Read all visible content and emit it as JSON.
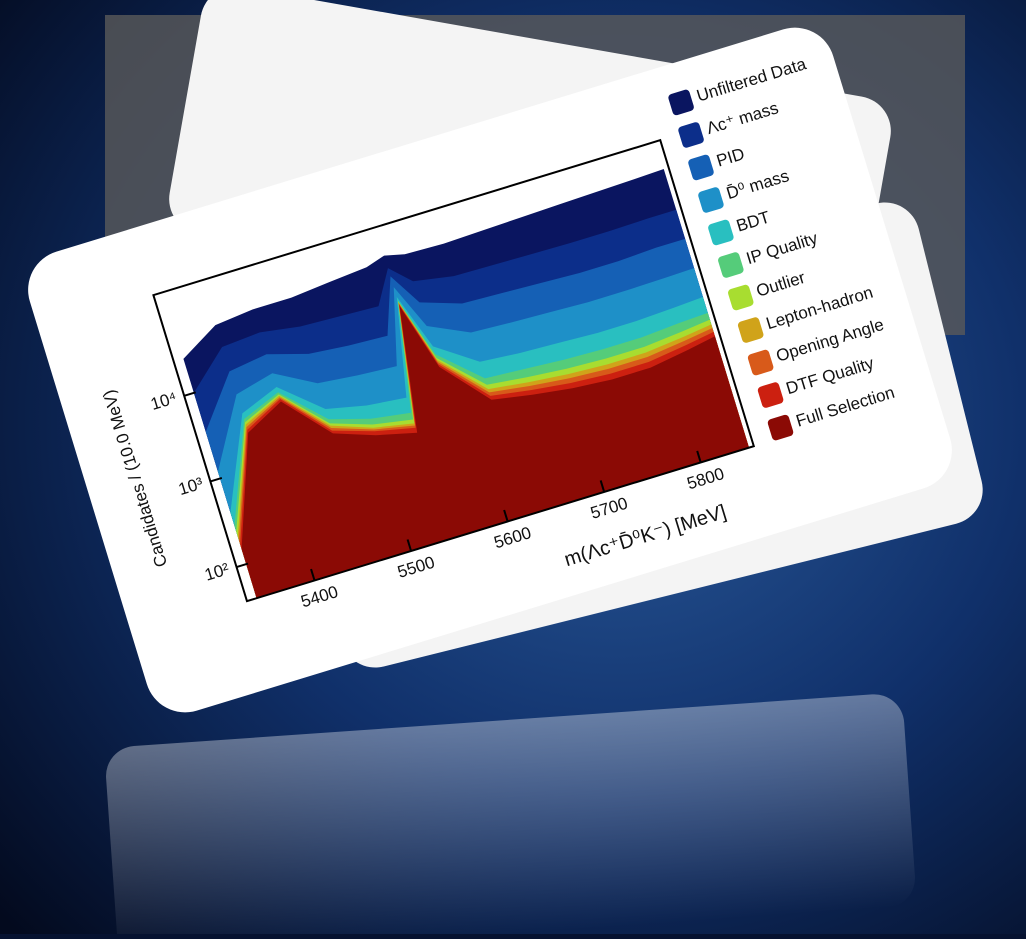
{
  "chart_data": {
    "type": "area",
    "ylabel": "Candidates / (10.0 MeV)",
    "xlabel": "m(Λc⁺D̄⁰K⁻) [MeV]",
    "log_y": true,
    "x": [
      5340,
      5380,
      5420,
      5460,
      5500,
      5540,
      5560,
      5580,
      5620,
      5660,
      5700,
      5740,
      5780,
      5820,
      5850
    ],
    "xlim": [
      5330,
      5855
    ],
    "xticks": [
      5400,
      5500,
      5600,
      5700,
      5800
    ],
    "ylim": [
      40,
      150000
    ],
    "yticks": [
      {
        "value": 100,
        "label": "10²"
      },
      {
        "value": 1000,
        "label": "10³"
      },
      {
        "value": 10000,
        "label": "10⁴"
      }
    ],
    "series": [
      {
        "name": "Unfiltered Data",
        "color": "#0a1560",
        "values": [
          25000,
          45000,
          50000,
          50000,
          55000,
          60000,
          70000,
          62000,
          60000,
          62000,
          64000,
          66000,
          68000,
          70000,
          72000
        ]
      },
      {
        "name": "Λc⁺ mass",
        "color": "#0c2e8a",
        "values": [
          10000,
          25000,
          27000,
          23000,
          22000,
          21000,
          50000,
          30000,
          25000,
          24500,
          24000,
          23500,
          23500,
          24000,
          24000
        ]
      },
      {
        "name": "PID",
        "color": "#1560b5",
        "values": [
          3500,
          13000,
          15000,
          11000,
          10000,
          9500,
          40000,
          17000,
          12000,
          11500,
          11000,
          10500,
          10500,
          11000,
          11000
        ]
      },
      {
        "name": "D̄⁰ mass",
        "color": "#1e90c8",
        "values": [
          1200,
          7000,
          9000,
          5000,
          4500,
          4200,
          30000,
          9000,
          5500,
          5200,
          5000,
          4800,
          4800,
          4900,
          5000
        ]
      },
      {
        "name": "BDT",
        "color": "#29bfc0",
        "values": [
          400,
          4200,
          6200,
          2500,
          2000,
          1800,
          23000,
          5200,
          2500,
          2300,
          2200,
          2100,
          2100,
          2200,
          2300
        ]
      },
      {
        "name": "IP Quality",
        "color": "#55cc7a",
        "values": [
          280,
          3600,
          5400,
          1900,
          1400,
          1200,
          21000,
          4200,
          1600,
          1500,
          1400,
          1350,
          1350,
          1450,
          1500
        ]
      },
      {
        "name": "Outlier",
        "color": "#a8dd30",
        "values": [
          240,
          3300,
          5100,
          1700,
          1200,
          1000,
          20500,
          3800,
          1350,
          1200,
          1100,
          1050,
          1050,
          1150,
          1250
        ]
      },
      {
        "name": "Lepton-hadron",
        "color": "#d0a31a",
        "values": [
          210,
          3100,
          4900,
          1600,
          1100,
          900,
          20000,
          3600,
          1200,
          1050,
          950,
          900,
          900,
          1000,
          1100
        ]
      },
      {
        "name": "Opening Angle",
        "color": "#d85a1a",
        "values": [
          190,
          2900,
          4700,
          1500,
          1050,
          850,
          19500,
          3400,
          1100,
          950,
          850,
          800,
          800,
          900,
          1000
        ]
      },
      {
        "name": "DTF Quality",
        "color": "#cc2010",
        "values": [
          170,
          2700,
          4500,
          1400,
          1000,
          800,
          19000,
          3200,
          1000,
          850,
          750,
          700,
          700,
          800,
          900
        ]
      },
      {
        "name": "Full Selection",
        "color": "#8b0a05",
        "values": [
          150,
          2500,
          4200,
          1300,
          900,
          700,
          18000,
          3000,
          900,
          750,
          650,
          600,
          600,
          700,
          800
        ]
      }
    ]
  }
}
